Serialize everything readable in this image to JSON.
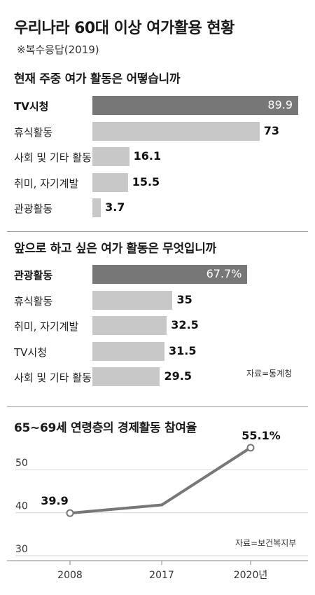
{
  "header": {
    "title": "우리나라 60대 이상 여가활용 현황",
    "subtitle": "※복수응답(2019)"
  },
  "chart_data": [
    {
      "type": "bar",
      "title": "현재 주중 여가 활동은 어떻습니까",
      "categories": [
        "TV시청",
        "휴식활동",
        "사회 및 기타 활동",
        "취미, 자기계발",
        "관광활동"
      ],
      "values": [
        89.9,
        73,
        16.1,
        15.5,
        3.7
      ],
      "value_labels": [
        "89.9",
        "73",
        "16.1",
        "15.5",
        "3.7"
      ],
      "highlight_index": 0
    },
    {
      "type": "bar",
      "title": "앞으로 하고 싶은 여가 활동은 무엇입니까",
      "categories": [
        "관광활동",
        "휴식활동",
        "취미, 자기계발",
        "TV시청",
        "사회 및 기타 활동"
      ],
      "values": [
        67.7,
        35,
        32.5,
        31.5,
        29.5
      ],
      "value_labels": [
        "67.7%",
        "35",
        "32.5",
        "31.5",
        "29.5"
      ],
      "highlight_index": 0,
      "source": "자료=통계청"
    },
    {
      "type": "line",
      "title": "65~69세 연령층의 경제활동 참여율",
      "x": [
        "2008",
        "2017",
        "2020년"
      ],
      "y": [
        39.9,
        41.8,
        55.1
      ],
      "point_labels": [
        "39.9",
        "",
        "55.1%"
      ],
      "markers": [
        true,
        false,
        true
      ],
      "yticks": [
        "30",
        "40",
        "50"
      ],
      "ylim": [
        30,
        58
      ],
      "grid": true,
      "source": "자료=보건복지부"
    }
  ],
  "colors": {
    "bar_highlight": "#777777",
    "bar_default": "#c8c8c8",
    "line": "#777777",
    "grid": "#d6d6d6"
  }
}
